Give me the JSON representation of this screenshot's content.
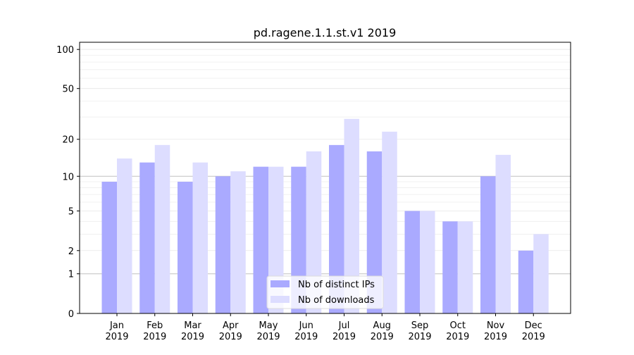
{
  "chart_data": {
    "type": "bar",
    "title": "pd.ragene.1.1.st.v1 2019",
    "xlabel": "",
    "ylabel": "",
    "yscale": "log(1+y)",
    "ylim": [
      0,
      110
    ],
    "yticks": [
      0,
      1,
      2,
      5,
      10,
      20,
      50,
      100
    ],
    "grid": true,
    "legend_position": "lower center",
    "categories": [
      "Jan\n2019",
      "Feb\n2019",
      "Mar\n2019",
      "Apr\n2019",
      "May\n2019",
      "Jun\n2019",
      "Jul\n2019",
      "Aug\n2019",
      "Sep\n2019",
      "Oct\n2019",
      "Nov\n2019",
      "Dec\n2019"
    ],
    "series": [
      {
        "name": "Nb of distinct IPs",
        "color": "#aaaaff",
        "values": [
          9,
          13,
          9,
          10,
          12,
          12,
          18,
          16,
          5,
          4,
          10,
          2
        ]
      },
      {
        "name": "Nb of downloads",
        "color": "#ddddff",
        "values": [
          14,
          18,
          13,
          11,
          12,
          16,
          29,
          23,
          5,
          4,
          15,
          3
        ]
      }
    ]
  }
}
